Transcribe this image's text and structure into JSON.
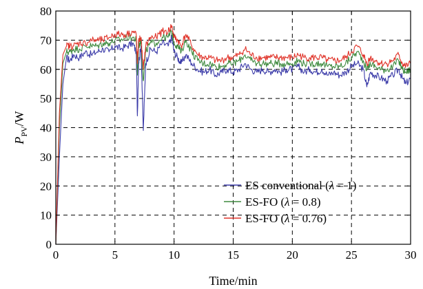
{
  "chart_data": {
    "type": "line",
    "title": "",
    "xlabel": "Time/min",
    "ylabel": {
      "main": "P",
      "sub": "PV",
      "unit": "/W"
    },
    "xlim": [
      0,
      30
    ],
    "ylim": [
      0,
      80
    ],
    "xticks": [
      "0",
      "5",
      "10",
      "15",
      "20",
      "25",
      "30"
    ],
    "yticks": [
      "0",
      "10",
      "20",
      "30",
      "40",
      "50",
      "60",
      "70",
      "80"
    ],
    "grid": true,
    "legend_position": "bottom-right",
    "series": [
      {
        "name": "ES conventional (λ = 1)",
        "legend": {
          "pre": "ES conventional (",
          "lambda": "λ",
          "post": " = 1)"
        },
        "color": "#3a3aa8",
        "x": [
          0,
          0.3,
          0.6,
          0.9,
          1.2,
          1.5,
          2,
          2.5,
          3,
          3.5,
          4,
          4.5,
          5,
          5.5,
          6,
          6.5,
          6.8,
          6.9,
          7.0,
          7.2,
          7.4,
          7.6,
          8,
          8.5,
          9,
          9.5,
          9.8,
          10,
          10.3,
          10.6,
          11,
          11.5,
          12,
          12.5,
          13,
          13.5,
          14,
          14.5,
          15,
          15.5,
          16,
          16.5,
          17,
          17.5,
          18,
          18.5,
          19,
          19.5,
          20,
          20.5,
          21,
          21.5,
          22,
          22.5,
          23,
          23.5,
          24,
          24.5,
          25,
          25.5,
          26,
          26.3,
          26.6,
          27,
          27.5,
          28,
          28.5,
          29,
          29.3,
          29.6,
          30
        ],
        "y": [
          0,
          30,
          55,
          64,
          63,
          65,
          64,
          66,
          65,
          66,
          67,
          66,
          68,
          67,
          68,
          69,
          66,
          44,
          62,
          68,
          39,
          62,
          67,
          66,
          69,
          68,
          71,
          66,
          64,
          62,
          65,
          62,
          60,
          59,
          60,
          58,
          59,
          60,
          59,
          60,
          62,
          60,
          59,
          60,
          59,
          60,
          59,
          60,
          60,
          61,
          59,
          60,
          59,
          60,
          58,
          59,
          58,
          59,
          61,
          62,
          60,
          54,
          59,
          58,
          57,
          56,
          58,
          60,
          57,
          55,
          57
        ]
      },
      {
        "name": "ES-FO (λ = 0.8)",
        "legend": {
          "pre": "ES-FO (",
          "lambda": "λ",
          "post": " = 0.8)"
        },
        "color": "#3e8a3e",
        "x": [
          0,
          0.3,
          0.6,
          0.9,
          1.2,
          1.5,
          2,
          2.5,
          3,
          3.5,
          4,
          4.5,
          5,
          5.5,
          6,
          6.5,
          6.8,
          6.9,
          7.0,
          7.2,
          7.4,
          7.6,
          8,
          8.5,
          9,
          9.5,
          9.8,
          10,
          10.3,
          10.6,
          11,
          11.5,
          12,
          12.5,
          13,
          13.5,
          14,
          14.5,
          15,
          15.5,
          16,
          16.5,
          17,
          17.5,
          18,
          18.5,
          19,
          19.5,
          20,
          20.5,
          21,
          21.5,
          22,
          22.5,
          23,
          23.5,
          24,
          24.5,
          25,
          25.5,
          26,
          26.3,
          26.6,
          27,
          27.5,
          28,
          28.5,
          29,
          29.3,
          29.6,
          30
        ],
        "y": [
          0,
          40,
          62,
          66,
          66,
          67,
          67,
          68,
          68,
          68,
          69,
          69,
          70,
          70,
          71,
          71,
          70,
          58,
          68,
          70,
          56,
          66,
          69,
          69,
          71,
          71,
          73,
          69,
          68,
          66,
          70,
          66,
          63,
          62,
          62,
          61,
          61,
          62,
          62,
          63,
          65,
          63,
          62,
          62,
          62,
          62,
          62,
          62,
          62,
          63,
          62,
          62,
          62,
          62,
          61,
          61,
          61,
          62,
          64,
          66,
          63,
          60,
          62,
          61,
          60,
          60,
          61,
          63,
          60,
          59,
          60
        ]
      },
      {
        "name": "ES-FO (λ = 0.76)",
        "legend": {
          "pre": "ES-FO (",
          "lambda": "λ",
          "post": " = 0.76)"
        },
        "color": "#e0342a",
        "x": [
          0,
          0.3,
          0.6,
          0.9,
          1.2,
          1.5,
          2,
          2.5,
          3,
          3.5,
          4,
          4.5,
          5,
          5.5,
          6,
          6.5,
          6.8,
          6.9,
          7.0,
          7.2,
          7.4,
          7.6,
          8,
          8.5,
          9,
          9.5,
          9.8,
          10,
          10.3,
          10.6,
          11,
          11.5,
          12,
          12.5,
          13,
          13.5,
          14,
          14.5,
          15,
          15.5,
          16,
          16.5,
          17,
          17.5,
          18,
          18.5,
          19,
          19.5,
          20,
          20.5,
          21,
          21.5,
          22,
          22.5,
          23,
          23.5,
          24,
          24.5,
          25,
          25.5,
          26,
          26.3,
          26.6,
          27,
          27.5,
          28,
          28.5,
          29,
          29.3,
          29.6,
          30
        ],
        "y": [
          0,
          45,
          65,
          68,
          68,
          68,
          69,
          69,
          70,
          70,
          70,
          71,
          72,
          72,
          72,
          73,
          72,
          62,
          70,
          71,
          60,
          68,
          71,
          71,
          73,
          73,
          75,
          71,
          70,
          68,
          72,
          68,
          65,
          64,
          64,
          63,
          63,
          64,
          64,
          65,
          67,
          65,
          64,
          64,
          64,
          64,
          64,
          64,
          64,
          65,
          64,
          64,
          64,
          64,
          63,
          63,
          63,
          64,
          66,
          68,
          65,
          62,
          64,
          63,
          62,
          62,
          63,
          65,
          62,
          61,
          62
        ]
      }
    ]
  }
}
